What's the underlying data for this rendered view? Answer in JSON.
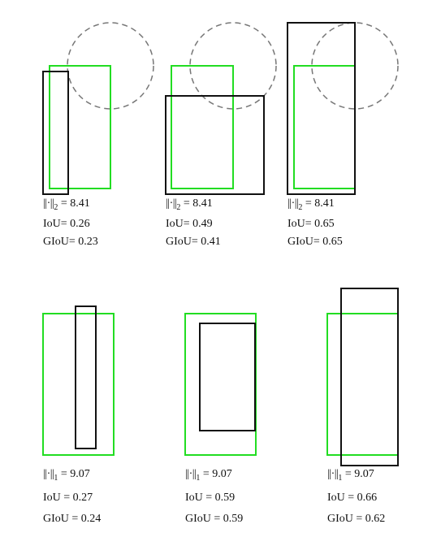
{
  "colors": {
    "ground_truth": "#22dd22",
    "prediction": "#111111",
    "circle": "#777777"
  },
  "top_row": [
    {
      "norm_symbol": "||·||",
      "norm_subscript": "2",
      "norm_value": "= 8.41",
      "iou": "IoU= 0.26",
      "giou": "GIoU= 0.23"
    },
    {
      "norm_symbol": "||·||",
      "norm_subscript": "2",
      "norm_value": "= 8.41",
      "iou": "IoU= 0.49",
      "giou": "GIoU= 0.41"
    },
    {
      "norm_symbol": "||·||",
      "norm_subscript": "2",
      "norm_value": "= 8.41",
      "iou": "IoU= 0.65",
      "giou": "GIoU= 0.65"
    }
  ],
  "bottom_row": [
    {
      "norm_symbol": "||·||",
      "norm_subscript": "1",
      "norm_value": "= 9.07",
      "iou": "IoU = 0.27",
      "giou": "GIoU = 0.24"
    },
    {
      "norm_symbol": "||·||",
      "norm_subscript": "1",
      "norm_value": "= 9.07",
      "iou": "IoU = 0.59",
      "giou": "GIoU = 0.59"
    },
    {
      "norm_symbol": "||·||",
      "norm_subscript": "1",
      "norm_value": "= 9.07",
      "iou": "IoU = 0.66",
      "giou": "GIoU = 0.62"
    }
  ]
}
